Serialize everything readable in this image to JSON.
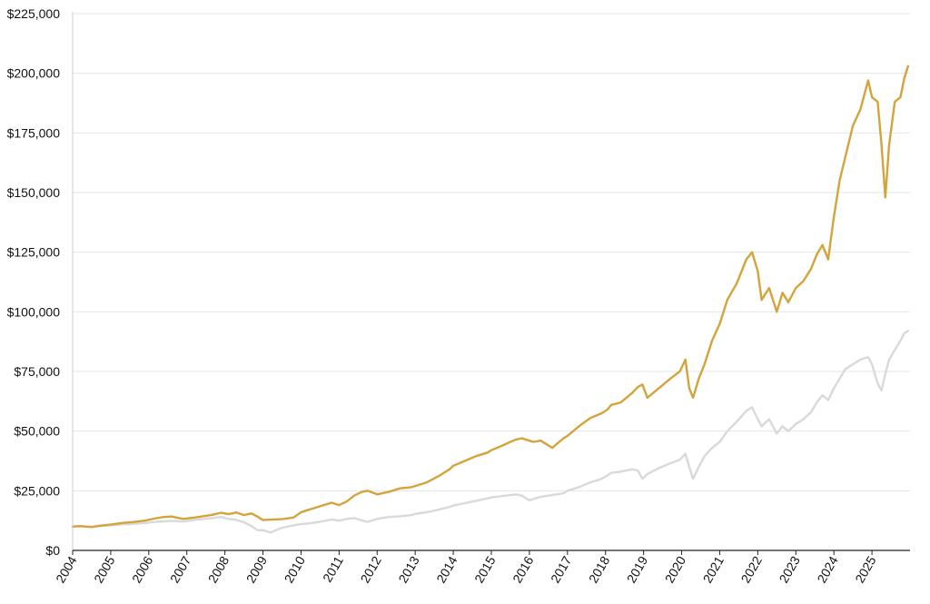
{
  "chart_data": {
    "type": "line",
    "title": "",
    "xlabel": "",
    "ylabel": "",
    "ylim": [
      0,
      225000
    ],
    "xlim": [
      2004,
      2026
    ],
    "grid": "horizontal",
    "legend": "none",
    "y_ticks": [
      0,
      25000,
      50000,
      75000,
      100000,
      125000,
      150000,
      175000,
      200000,
      225000
    ],
    "y_tick_labels": [
      "$0",
      "$25,000",
      "$50,000",
      "$75,000",
      "$100,000",
      "$125,000",
      "$150,000",
      "$175,000",
      "$200,000",
      "$225,000"
    ],
    "x_ticks": [
      2004,
      2005,
      2006,
      2007,
      2008,
      2009,
      2010,
      2011,
      2012,
      2013,
      2014,
      2015,
      2016,
      2017,
      2018,
      2019,
      2020,
      2021,
      2022,
      2023,
      2024,
      2025
    ],
    "x_tick_labels": [
      "2004",
      "2005",
      "2006",
      "2007",
      "2008",
      "2009",
      "2010",
      "2011",
      "2012",
      "2013",
      "2014",
      "2015",
      "2016",
      "2017",
      "2018",
      "2019",
      "2020",
      "2021",
      "2022",
      "2023",
      "2024",
      "2025"
    ],
    "series": [
      {
        "color": "#d4a33a",
        "x": [
          2004.0,
          2004.2,
          2004.5,
          2004.7,
          2005.0,
          2005.3,
          2005.6,
          2005.9,
          2006.2,
          2006.4,
          2006.6,
          2006.9,
          2007.2,
          2007.5,
          2007.7,
          2007.9,
          2008.1,
          2008.3,
          2008.5,
          2008.7,
          2008.85,
          2009.0,
          2009.2,
          2009.5,
          2009.8,
          2010.0,
          2010.2,
          2010.5,
          2010.8,
          2011.0,
          2011.2,
          2011.4,
          2011.6,
          2011.75,
          2012.0,
          2012.3,
          2012.6,
          2012.9,
          2013.0,
          2013.3,
          2013.6,
          2013.9,
          2014.0,
          2014.3,
          2014.6,
          2014.9,
          2015.0,
          2015.3,
          2015.5,
          2015.65,
          2015.8,
          2016.0,
          2016.1,
          2016.3,
          2016.6,
          2016.9,
          2017.0,
          2017.3,
          2017.6,
          2017.9,
          2018.05,
          2018.15,
          2018.4,
          2018.7,
          2018.85,
          2018.97,
          2019.1,
          2019.4,
          2019.7,
          2019.95,
          2020.1,
          2020.2,
          2020.3,
          2020.45,
          2020.6,
          2020.8,
          2021.0,
          2021.2,
          2021.45,
          2021.7,
          2021.85,
          2022.0,
          2022.1,
          2022.3,
          2022.5,
          2022.65,
          2022.8,
          2023.0,
          2023.2,
          2023.4,
          2023.55,
          2023.7,
          2023.85,
          2024.0,
          2024.15,
          2024.3,
          2024.5,
          2024.7,
          2024.9,
          2025.0,
          2025.15,
          2025.25,
          2025.35,
          2025.45,
          2025.6,
          2025.75,
          2025.85,
          2025.95
        ],
        "values": [
          10000,
          10200,
          9800,
          10300,
          10800,
          11500,
          11900,
          12500,
          13500,
          14000,
          14200,
          13200,
          13800,
          14500,
          15000,
          15800,
          15200,
          15900,
          14800,
          15500,
          14200,
          12700,
          12900,
          13100,
          13800,
          16000,
          17000,
          18500,
          20000,
          19000,
          20500,
          23000,
          24500,
          25000,
          23500,
          24500,
          26000,
          26500,
          27000,
          28500,
          31000,
          34000,
          35500,
          37500,
          39500,
          41000,
          42000,
          44000,
          45500,
          46500,
          47000,
          46000,
          45500,
          46000,
          43000,
          47000,
          48000,
          52000,
          55500,
          57500,
          59000,
          61000,
          62000,
          66000,
          68500,
          69500,
          64000,
          68000,
          72000,
          75000,
          80000,
          68000,
          64000,
          72000,
          78000,
          88000,
          95000,
          105000,
          112000,
          122000,
          125000,
          117000,
          105000,
          110000,
          100000,
          108000,
          104000,
          110000,
          113000,
          118000,
          124000,
          128000,
          122000,
          140000,
          155000,
          165000,
          178000,
          185000,
          197000,
          190000,
          188000,
          170000,
          148000,
          170000,
          188000,
          190000,
          198000,
          203000
        ]
      },
      {
        "color": "#d9d9d9",
        "x": [
          2004.0,
          2004.2,
          2004.5,
          2004.7,
          2005.0,
          2005.3,
          2005.6,
          2005.9,
          2006.2,
          2006.4,
          2006.6,
          2006.9,
          2007.2,
          2007.5,
          2007.7,
          2007.9,
          2008.1,
          2008.3,
          2008.5,
          2008.7,
          2008.85,
          2009.0,
          2009.2,
          2009.5,
          2009.8,
          2010.0,
          2010.2,
          2010.5,
          2010.8,
          2011.0,
          2011.2,
          2011.4,
          2011.6,
          2011.75,
          2012.0,
          2012.3,
          2012.6,
          2012.9,
          2013.0,
          2013.3,
          2013.6,
          2013.9,
          2014.0,
          2014.3,
          2014.6,
          2014.9,
          2015.0,
          2015.3,
          2015.5,
          2015.65,
          2015.8,
          2016.0,
          2016.1,
          2016.3,
          2016.6,
          2016.9,
          2017.0,
          2017.3,
          2017.6,
          2017.9,
          2018.05,
          2018.15,
          2018.4,
          2018.7,
          2018.85,
          2018.97,
          2019.1,
          2019.4,
          2019.7,
          2019.95,
          2020.1,
          2020.2,
          2020.3,
          2020.45,
          2020.6,
          2020.8,
          2021.0,
          2021.2,
          2021.45,
          2021.7,
          2021.85,
          2022.0,
          2022.1,
          2022.3,
          2022.5,
          2022.65,
          2022.8,
          2023.0,
          2023.2,
          2023.4,
          2023.55,
          2023.7,
          2023.85,
          2024.0,
          2024.15,
          2024.3,
          2024.5,
          2024.7,
          2024.9,
          2025.0,
          2025.15,
          2025.25,
          2025.35,
          2025.45,
          2025.6,
          2025.75,
          2025.85,
          2025.95
        ],
        "values": [
          10000,
          10100,
          9900,
          10300,
          10500,
          10900,
          11100,
          11500,
          12000,
          12200,
          12400,
          12100,
          12800,
          13300,
          13600,
          14000,
          13200,
          12800,
          11800,
          10200,
          8500,
          8500,
          7500,
          9500,
          10500,
          11000,
          11300,
          12000,
          13000,
          12500,
          13200,
          13500,
          12600,
          12000,
          13200,
          14000,
          14300,
          14800,
          15300,
          16000,
          17000,
          18200,
          18800,
          19800,
          20800,
          21800,
          22200,
          22800,
          23200,
          23400,
          23000,
          21000,
          21500,
          22500,
          23200,
          24000,
          25000,
          26500,
          28500,
          30000,
          31500,
          32500,
          33000,
          34000,
          33500,
          30000,
          32000,
          34500,
          36500,
          38000,
          40500,
          35000,
          30000,
          35000,
          39500,
          43000,
          45500,
          50000,
          54000,
          58500,
          60000,
          55000,
          52000,
          55000,
          49000,
          52000,
          50000,
          53000,
          55000,
          58000,
          62000,
          65000,
          63000,
          68000,
          72000,
          76000,
          78000,
          80000,
          81000,
          78000,
          70000,
          67000,
          74000,
          80000,
          84000,
          88000,
          91000,
          92000
        ]
      }
    ]
  }
}
